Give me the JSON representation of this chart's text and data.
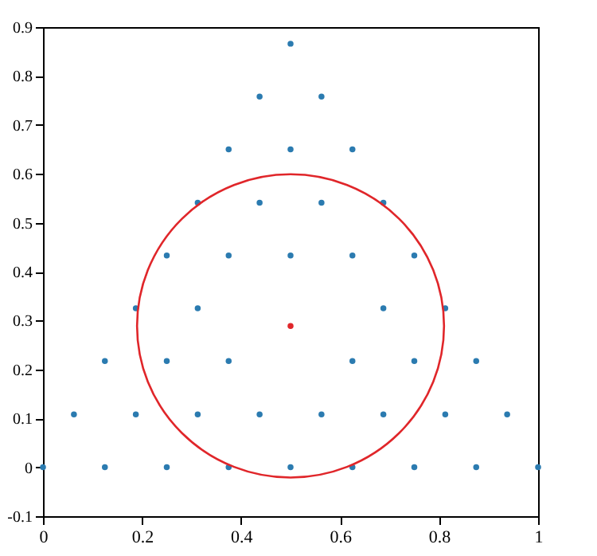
{
  "chart_data": {
    "type": "scatter",
    "xlim": [
      0,
      1
    ],
    "ylim": [
      -0.1,
      0.9
    ],
    "xticks": [
      0,
      0.2,
      0.4,
      0.6,
      0.8,
      1
    ],
    "yticks": [
      -0.1,
      0,
      0.1,
      0.2,
      0.3,
      0.4,
      0.5,
      0.6,
      0.7,
      0.8,
      0.9
    ],
    "grid": false,
    "marker": "circle",
    "series": [
      {
        "color": "#2b7bb0",
        "x": [
          0,
          0.125,
          0.25,
          0.375,
          0.5,
          0.625,
          0.75,
          0.875,
          1,
          0.0625,
          0.1875,
          0.3125,
          0.4375,
          0.5625,
          0.6875,
          0.8125,
          0.9375,
          0.125,
          0.25,
          0.375,
          0.625,
          0.75,
          0.875,
          0.1875,
          0.3125,
          0.6875,
          0.8125,
          0.25,
          0.375,
          0.5,
          0.625,
          0.75,
          0.3125,
          0.4375,
          0.5625,
          0.6875,
          0.375,
          0.5,
          0.625,
          0.4375,
          0.5625,
          0.5
        ],
        "values": [
          0,
          0,
          0,
          0,
          0,
          0,
          0,
          0,
          0,
          0.108,
          0.108,
          0.108,
          0.108,
          0.108,
          0.108,
          0.108,
          0.108,
          0.217,
          0.217,
          0.217,
          0.217,
          0.217,
          0.217,
          0.325,
          0.325,
          0.325,
          0.325,
          0.433,
          0.433,
          0.433,
          0.433,
          0.433,
          0.541,
          0.541,
          0.541,
          0.541,
          0.65,
          0.65,
          0.65,
          0.758,
          0.758,
          0.866
        ]
      },
      {
        "type": "scatter",
        "color": "#e0262a",
        "x": [
          0.5
        ],
        "values": [
          0.289
        ]
      }
    ]
  }
}
